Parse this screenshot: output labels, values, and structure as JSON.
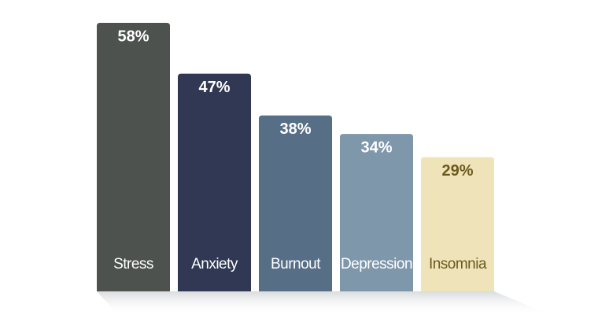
{
  "chart_data": {
    "type": "bar",
    "categories": [
      "Stress",
      "Anxiety",
      "Burnout",
      "Depression",
      "Insomnia"
    ],
    "values": [
      58,
      47,
      38,
      34,
      29
    ],
    "value_labels": [
      "58%",
      "47%",
      "38%",
      "34%",
      "29%"
    ],
    "colors": [
      "#4d524f",
      "#303853",
      "#566f87",
      "#7f97ab",
      "#efe4b9"
    ],
    "label_colors": [
      "#ffffff",
      "#ffffff",
      "#ffffff",
      "#ffffff",
      "#6b5a1e"
    ]
  }
}
